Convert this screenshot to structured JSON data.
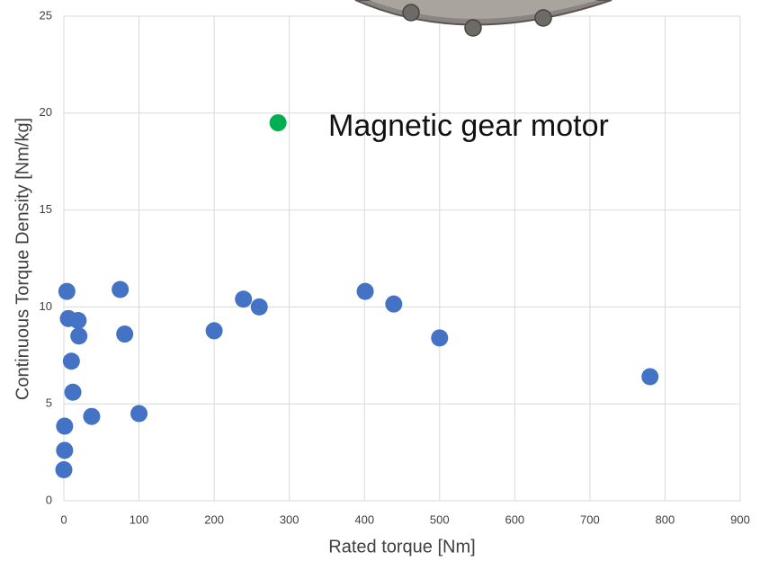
{
  "chart_data": {
    "type": "scatter",
    "x_label": "Rated torque [Nm]",
    "y_label": "Continuous Torque Density [Nm/kg]",
    "annotation": "Magnetic gear motor",
    "xlim": [
      0,
      900
    ],
    "xticks": [
      0,
      100,
      200,
      300,
      400,
      500,
      600,
      700,
      800,
      900
    ],
    "ylim": [
      0,
      25
    ],
    "yticks": [
      0,
      5,
      10,
      15,
      20,
      25
    ],
    "grid": true,
    "series": [
      {
        "color": "#4472c4",
        "x": [
          0,
          1,
          1,
          4,
          6,
          19,
          20,
          10,
          12,
          37,
          75,
          81,
          100,
          200,
          239,
          260,
          401,
          439,
          500,
          780
        ],
        "values": [
          1.6,
          2.6,
          3.85,
          10.8,
          9.4,
          9.3,
          8.5,
          7.2,
          5.6,
          4.35,
          10.9,
          8.6,
          4.5,
          8.77,
          10.4,
          10.0,
          10.8,
          10.15,
          8.4,
          6.4
        ]
      },
      {
        "color": "#00b050",
        "x": [
          285
        ],
        "values": [
          19.5
        ]
      }
    ]
  }
}
